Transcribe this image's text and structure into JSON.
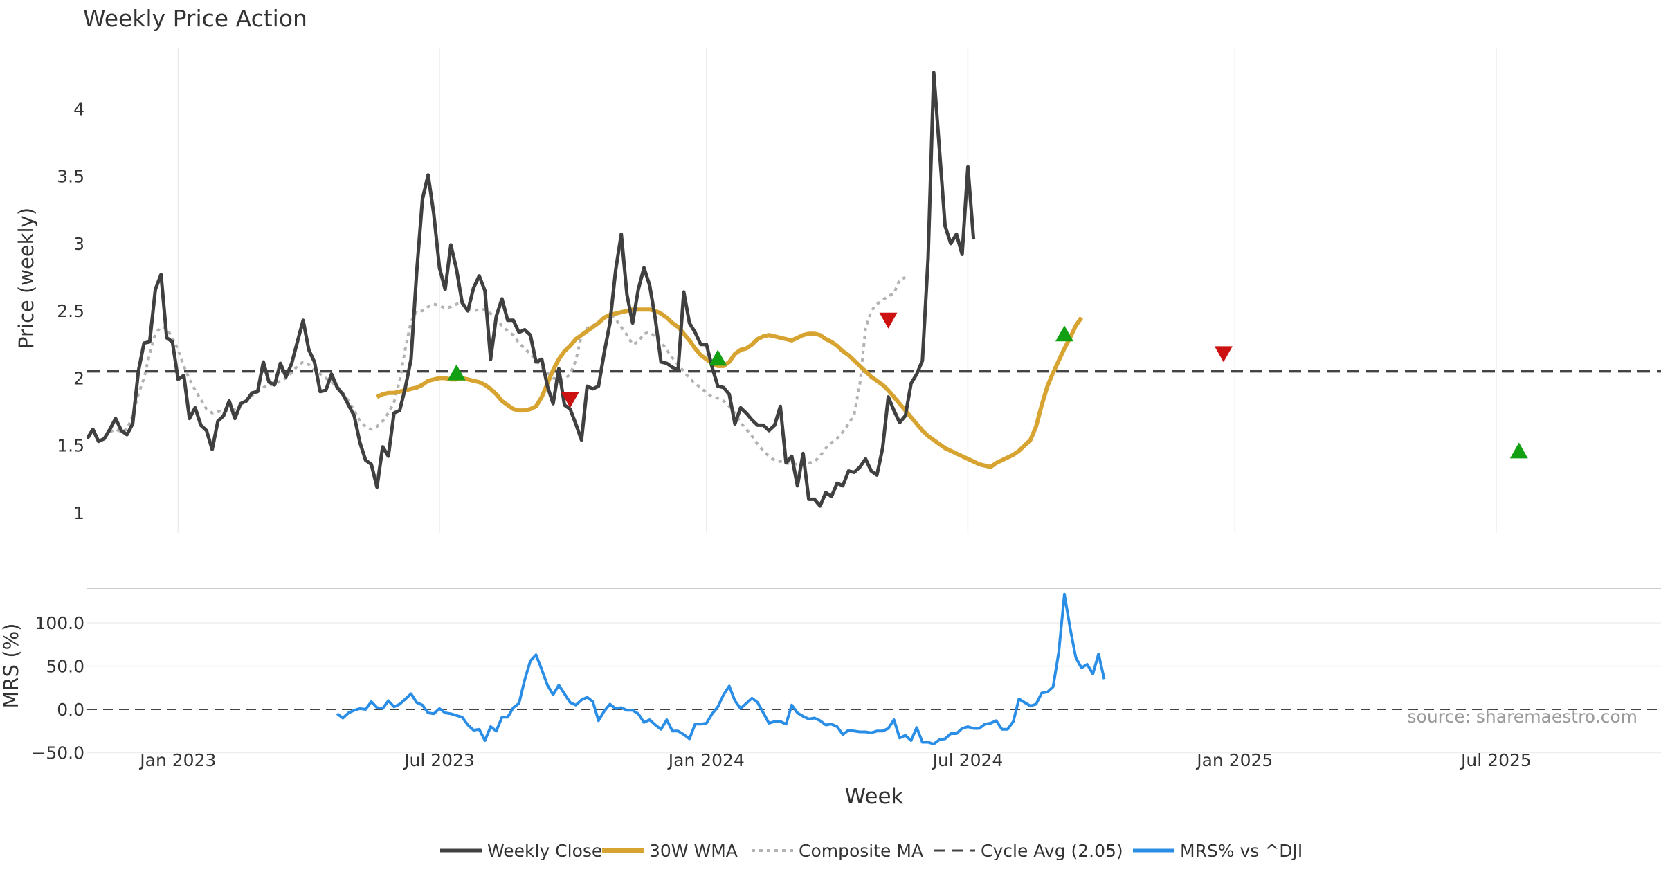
{
  "chart_data": {
    "type": "line",
    "title": "Weekly Price Action",
    "xlabel": "Week",
    "source": "source: sharemaestro.com",
    "x_ticks": [
      "Jan 2023",
      "Jul 2023",
      "Jan 2024",
      "Jul 2024",
      "Jan 2025",
      "Jul 2025"
    ],
    "x_tick_weeks": [
      20,
      66,
      113,
      159,
      206,
      252
    ],
    "x_range_weeks": [
      4,
      281
    ],
    "colors": {
      "close": "#404040",
      "wma": "#d8a431",
      "composite": "#b3b3b3",
      "cycle": "#444444",
      "mrs": "#2b8ee6",
      "up": "#12a012",
      "down": "#cc1111",
      "source": "#999999"
    },
    "price_panel": {
      "ylabel": "Price (weekly)",
      "y_ticks": [
        "1",
        "1.5",
        "2",
        "2.5",
        "3",
        "3.5",
        "4"
      ],
      "y_tick_values": [
        1,
        1.5,
        2,
        2.5,
        3,
        3.5,
        4
      ],
      "ylim": [
        0.85,
        4.45
      ],
      "cycle_avg": 2.05,
      "series": [
        {
          "name": "Weekly Close",
          "key": "close",
          "start_week": 4,
          "values": [
            1.55,
            1.62,
            1.53,
            1.55,
            1.62,
            1.7,
            1.61,
            1.58,
            1.66,
            2.05,
            2.26,
            2.27,
            2.66,
            2.77,
            2.3,
            2.27,
            1.99,
            2.02,
            1.7,
            1.78,
            1.65,
            1.61,
            1.47,
            1.68,
            1.72,
            1.83,
            1.7,
            1.81,
            1.83,
            1.89,
            1.9,
            2.12,
            1.97,
            1.95,
            2.11,
            2.01,
            2.11,
            2.27,
            2.43,
            2.21,
            2.12,
            1.9,
            1.91,
            2.03,
            1.93,
            1.88,
            1.8,
            1.72,
            1.52,
            1.39,
            1.36,
            1.19,
            1.49,
            1.42,
            1.74,
            1.76,
            1.93,
            2.14,
            2.79,
            3.33,
            3.51,
            3.22,
            2.82,
            2.66,
            2.99,
            2.81,
            2.56,
            2.5,
            2.67,
            2.76,
            2.65,
            2.14,
            2.46,
            2.59,
            2.43,
            2.43,
            2.34,
            2.36,
            2.32,
            2.12,
            2.14,
            1.94,
            1.81,
            2.07,
            1.8,
            1.77,
            1.66,
            1.54,
            1.94,
            1.92,
            1.94,
            2.19,
            2.41,
            2.8,
            3.07,
            2.62,
            2.41,
            2.66,
            2.82,
            2.69,
            2.44,
            2.12,
            2.11,
            2.08,
            2.06,
            2.64,
            2.41,
            2.34,
            2.25,
            2.25,
            2.08,
            1.94,
            1.93,
            1.88,
            1.66,
            1.78,
            1.74,
            1.69,
            1.65,
            1.65,
            1.61,
            1.65,
            1.79,
            1.37,
            1.42,
            1.2,
            1.44,
            1.1,
            1.1,
            1.05,
            1.15,
            1.12,
            1.22,
            1.2,
            1.31,
            1.3,
            1.34,
            1.4,
            1.31,
            1.28,
            1.48,
            1.86,
            1.76,
            1.67,
            1.72,
            1.96,
            2.03,
            2.13,
            2.89,
            4.27,
            3.7,
            3.13,
            3.0,
            3.07,
            2.92,
            3.57,
            3.03
          ]
        },
        {
          "name": "30W WMA",
          "key": "wma",
          "start_week": 55,
          "values": [
            1.86,
            1.88,
            1.89,
            1.89,
            1.9,
            1.91,
            1.92,
            1.93,
            1.95,
            1.98,
            1.99,
            2.0,
            2.0,
            1.99,
            1.99,
            2.0,
            1.99,
            1.98,
            1.97,
            1.95,
            1.92,
            1.88,
            1.83,
            1.8,
            1.77,
            1.76,
            1.76,
            1.77,
            1.79,
            1.86,
            1.96,
            2.06,
            2.14,
            2.2,
            2.24,
            2.29,
            2.32,
            2.35,
            2.38,
            2.41,
            2.45,
            2.47,
            2.48,
            2.49,
            2.5,
            2.51,
            2.51,
            2.51,
            2.51,
            2.5,
            2.48,
            2.45,
            2.41,
            2.38,
            2.33,
            2.28,
            2.22,
            2.17,
            2.14,
            2.11,
            2.09,
            2.09,
            2.12,
            2.18,
            2.21,
            2.22,
            2.25,
            2.29,
            2.31,
            2.32,
            2.31,
            2.3,
            2.29,
            2.28,
            2.3,
            2.32,
            2.33,
            2.33,
            2.32,
            2.29,
            2.27,
            2.24,
            2.2,
            2.17,
            2.13,
            2.09,
            2.05,
            2.01,
            1.98,
            1.95,
            1.91,
            1.86,
            1.81,
            1.76,
            1.71,
            1.66,
            1.61,
            1.57,
            1.54,
            1.51,
            1.48,
            1.46,
            1.44,
            1.42,
            1.4,
            1.38,
            1.36,
            1.35,
            1.34,
            1.37,
            1.39,
            1.41,
            1.43,
            1.46,
            1.5,
            1.54,
            1.64,
            1.8,
            1.94,
            2.04,
            2.13,
            2.22,
            2.3,
            2.39,
            2.45
          ]
        },
        {
          "name": "Composite MA",
          "key": "composite",
          "start_week": 8,
          "values": [
            1.6,
            1.62,
            1.6,
            1.62,
            1.72,
            1.88,
            2.0,
            2.18,
            2.33,
            2.38,
            2.37,
            2.3,
            2.21,
            2.09,
            1.99,
            1.91,
            1.84,
            1.77,
            1.74,
            1.75,
            1.76,
            1.76,
            1.77,
            1.8,
            1.83,
            1.87,
            1.9,
            1.93,
            1.95,
            1.95,
            1.98,
            2.0,
            2.04,
            2.09,
            2.12,
            2.1,
            2.06,
            2.03,
            2.0,
            1.97,
            1.94,
            1.89,
            1.83,
            1.76,
            1.68,
            1.64,
            1.62,
            1.64,
            1.68,
            1.74,
            1.82,
            1.98,
            2.22,
            2.42,
            2.5,
            2.5,
            2.53,
            2.55,
            2.54,
            2.52,
            2.53,
            2.55,
            2.56,
            2.52,
            2.5,
            2.51,
            2.51,
            2.48,
            2.44,
            2.39,
            2.35,
            2.32,
            2.26,
            2.22,
            2.18,
            2.13,
            2.08,
            2.04,
            2.0,
            1.99,
            1.99,
            2.03,
            2.13,
            2.32,
            2.37,
            2.39,
            2.42,
            2.45,
            2.48,
            2.44,
            2.38,
            2.32,
            2.25,
            2.27,
            2.33,
            2.34,
            2.31,
            2.27,
            2.21,
            2.15,
            2.1,
            2.05,
            2.0,
            1.96,
            1.93,
            1.89,
            1.86,
            1.85,
            1.83,
            1.79,
            1.74,
            1.67,
            1.62,
            1.57,
            1.51,
            1.46,
            1.42,
            1.39,
            1.38,
            1.37,
            1.36,
            1.36,
            1.36,
            1.37,
            1.38,
            1.42,
            1.48,
            1.52,
            1.55,
            1.6,
            1.66,
            1.73,
            1.96,
            2.37,
            2.5,
            2.55,
            2.58,
            2.61,
            2.63,
            2.73,
            2.75
          ]
        }
      ],
      "up_signals": [
        {
          "week": 69,
          "value": 2.04
        },
        {
          "week": 115,
          "value": 2.15
        },
        {
          "week": 176,
          "value": 2.33
        },
        {
          "week": 256,
          "value": 1.46
        }
      ],
      "down_signals": [
        {
          "week": 89,
          "value": 1.84
        },
        {
          "week": 145,
          "value": 2.43
        },
        {
          "week": 204,
          "value": 2.18
        }
      ]
    },
    "mrs_panel": {
      "ylabel": "MRS (%)",
      "y_ticks": [
        "100.0",
        "50.0",
        "0.0",
        "−50.0"
      ],
      "y_tick_values": [
        100,
        50,
        0,
        -50
      ],
      "ylim": [
        -52,
        140
      ],
      "series": [
        {
          "name": "MRS% vs ^DJI",
          "key": "mrs",
          "start_week": 48,
          "values": [
            -5,
            -10,
            -4,
            -1,
            1,
            0,
            9,
            2,
            1,
            10,
            3,
            6,
            12,
            18,
            8,
            5,
            -4,
            -5,
            1,
            -4,
            -5,
            -7,
            -9,
            -18,
            -24,
            -23,
            -36,
            -20,
            -25,
            -9,
            -9,
            2,
            7,
            34,
            56,
            63,
            46,
            28,
            17,
            28,
            18,
            8,
            5,
            11,
            14,
            9,
            -13,
            -2,
            6,
            1,
            2,
            -1,
            -1,
            -5,
            -15,
            -12,
            -18,
            -23,
            -12,
            -25,
            -25,
            -29,
            -34,
            -17,
            -17,
            -16,
            -5,
            3,
            17,
            27,
            10,
            1,
            7,
            13,
            8,
            -4,
            -16,
            -14,
            -14,
            -17,
            5,
            -4,
            -8,
            -11,
            -10,
            -13,
            -18,
            -17,
            -20,
            -29,
            -24,
            -25,
            -26,
            -26,
            -27,
            -25,
            -25,
            -22,
            -12,
            -33,
            -30,
            -36,
            -21,
            -38,
            -38,
            -40,
            -35,
            -34,
            -28,
            -28,
            -22,
            -20,
            -22,
            -22,
            -17,
            -16,
            -13,
            -23,
            -23,
            -14,
            12,
            8,
            4,
            6,
            19,
            20,
            26,
            66,
            133,
            94,
            60,
            48,
            52,
            41,
            64,
            35
          ]
        }
      ]
    },
    "legend": [
      {
        "label": "Weekly Close",
        "key": "close"
      },
      {
        "label": "30W WMA",
        "key": "wma"
      },
      {
        "label": "Composite MA",
        "key": "composite"
      },
      {
        "label": "Cycle Avg (2.05)",
        "key": "cycle"
      },
      {
        "label": "MRS% vs ^DJI",
        "key": "mrs"
      }
    ]
  }
}
